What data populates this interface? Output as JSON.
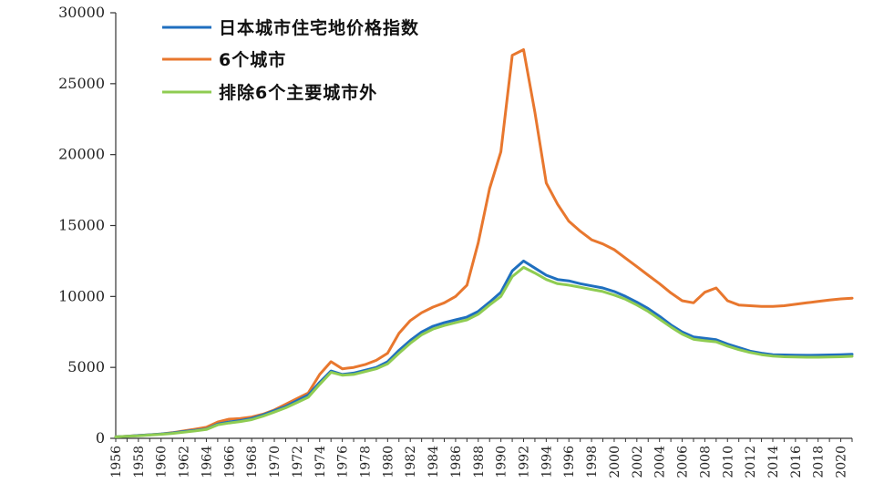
{
  "chart_data": {
    "type": "line",
    "title": "",
    "xlabel": "",
    "ylabel": "",
    "xlim": [
      1956,
      2021
    ],
    "ylim": [
      0,
      30000
    ],
    "yticks": [
      0,
      5000,
      10000,
      15000,
      20000,
      25000,
      30000
    ],
    "ytick_labels": [
      "0",
      "5000",
      "10000",
      "15000",
      "20000",
      "25000",
      "30000"
    ],
    "xticks": [
      1956,
      1958,
      1960,
      1962,
      1964,
      1966,
      1968,
      1970,
      1972,
      1974,
      1976,
      1978,
      1980,
      1982,
      1984,
      1986,
      1988,
      1990,
      1992,
      1994,
      1996,
      1998,
      2000,
      2002,
      2004,
      2006,
      2008,
      2010,
      2012,
      2014,
      2016,
      2018,
      2020
    ],
    "xtick_labels": [
      "1956",
      "1958",
      "1960",
      "1962",
      "1964",
      "1966",
      "1968",
      "1970",
      "1972",
      "1974",
      "1976",
      "1978",
      "1980",
      "1982",
      "1984",
      "1986",
      "1988",
      "1990",
      "1992",
      "1994",
      "1996",
      "1998",
      "2000",
      "2002",
      "2004",
      "2006",
      "2008",
      "2010",
      "2012",
      "2014",
      "2016",
      "2018",
      "2020"
    ],
    "grid": false,
    "legend_position": "top-left",
    "x": [
      1956,
      1957,
      1958,
      1959,
      1960,
      1961,
      1962,
      1963,
      1964,
      1965,
      1966,
      1967,
      1968,
      1969,
      1970,
      1971,
      1972,
      1973,
      1974,
      1975,
      1976,
      1977,
      1978,
      1979,
      1980,
      1981,
      1982,
      1983,
      1984,
      1985,
      1986,
      1987,
      1988,
      1989,
      1990,
      1991,
      1992,
      1993,
      1994,
      1995,
      1996,
      1997,
      1998,
      1999,
      2000,
      2001,
      2002,
      2003,
      2004,
      2005,
      2006,
      2007,
      2008,
      2009,
      2010,
      2011,
      2012,
      2013,
      2014,
      2015,
      2016,
      2017,
      2018,
      2019,
      2020,
      2021
    ],
    "series": [
      {
        "name": "日本城市住宅地价格指数",
        "color": "#1f6fbf",
        "values": [
          100,
          150,
          200,
          250,
          300,
          380,
          480,
          560,
          650,
          1000,
          1150,
          1250,
          1400,
          1650,
          1950,
          2250,
          2650,
          3050,
          3950,
          4750,
          4500,
          4600,
          4800,
          5000,
          5400,
          6200,
          6900,
          7500,
          7900,
          8150,
          8350,
          8550,
          8950,
          9600,
          10300,
          11800,
          12500,
          12000,
          11500,
          11200,
          11100,
          10900,
          10750,
          10600,
          10350,
          10000,
          9600,
          9150,
          8600,
          8000,
          7500,
          7150,
          7050,
          6950,
          6650,
          6400,
          6150,
          6000,
          5900,
          5880,
          5860,
          5850,
          5860,
          5880,
          5900,
          5930
        ]
      },
      {
        "name": "6个城市",
        "color": "#e8772e",
        "values": [
          100,
          150,
          200,
          250,
          300,
          400,
          520,
          640,
          780,
          1150,
          1350,
          1400,
          1500,
          1700,
          2000,
          2400,
          2800,
          3200,
          4500,
          5400,
          4900,
          5000,
          5200,
          5500,
          6000,
          7400,
          8300,
          8850,
          9250,
          9550,
          10000,
          10800,
          13800,
          17600,
          20200,
          27000,
          27400,
          23000,
          18000,
          16500,
          15300,
          14600,
          14000,
          13700,
          13300,
          12700,
          12100,
          11500,
          10900,
          10250,
          9700,
          9550,
          10300,
          10600,
          9700,
          9400,
          9350,
          9300,
          9300,
          9350,
          9450,
          9550,
          9650,
          9750,
          9830,
          9880
        ]
      },
      {
        "name": "排除6个主要城市外",
        "color": "#8fcc52",
        "values": [
          100,
          140,
          180,
          230,
          280,
          350,
          440,
          520,
          620,
          950,
          1080,
          1180,
          1320,
          1560,
          1850,
          2150,
          2520,
          2900,
          3800,
          4650,
          4450,
          4500,
          4700,
          4900,
          5250,
          6000,
          6700,
          7300,
          7700,
          7950,
          8150,
          8350,
          8750,
          9400,
          10000,
          11400,
          12050,
          11650,
          11200,
          10900,
          10800,
          10650,
          10500,
          10350,
          10100,
          9800,
          9400,
          8950,
          8400,
          7850,
          7350,
          6980,
          6880,
          6800,
          6500,
          6250,
          6050,
          5900,
          5800,
          5750,
          5730,
          5720,
          5720,
          5730,
          5750,
          5780
        ]
      }
    ]
  }
}
